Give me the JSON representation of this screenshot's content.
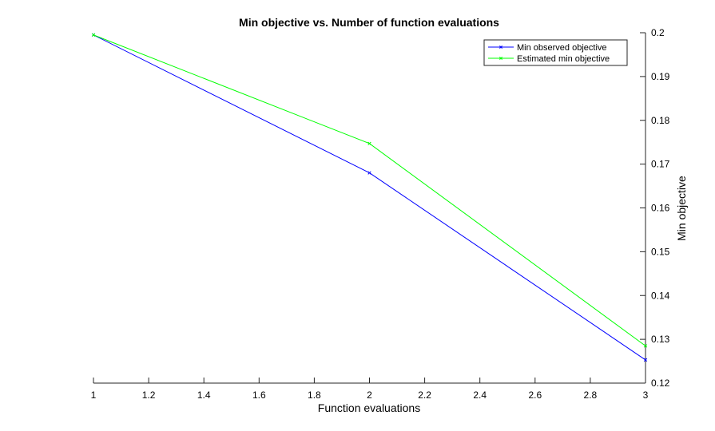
{
  "chart_data": {
    "type": "line",
    "title": "Min objective vs. Number of function evaluations",
    "xlabel": "Function evaluations",
    "ylabel": "Min objective",
    "xlim": [
      1,
      3
    ],
    "ylim": [
      0.12,
      0.2
    ],
    "xticks": [
      "1",
      "1.2",
      "1.4",
      "1.6",
      "1.8",
      "2",
      "2.2",
      "2.4",
      "2.6",
      "2.8",
      "3"
    ],
    "xtick_values": [
      1,
      1.2,
      1.4,
      1.6,
      1.8,
      2,
      2.2,
      2.4,
      2.6,
      2.8,
      3
    ],
    "yticks": [
      "0.12",
      "0.13",
      "0.14",
      "0.15",
      "0.16",
      "0.17",
      "0.18",
      "0.19",
      "0.2"
    ],
    "ytick_values": [
      0.12,
      0.13,
      0.14,
      0.15,
      0.16,
      0.17,
      0.18,
      0.19,
      0.2
    ],
    "y_axis_side": "right",
    "grid": false,
    "legend_position": "top-right",
    "x": [
      1,
      2,
      3
    ],
    "series": [
      {
        "name": "Min observed objective",
        "color": "#0000ff",
        "values": [
          0.1995,
          0.168,
          0.1253
        ]
      },
      {
        "name": "Estimated min objective",
        "color": "#00ff00",
        "values": [
          0.1995,
          0.1747,
          0.1285
        ]
      }
    ]
  }
}
